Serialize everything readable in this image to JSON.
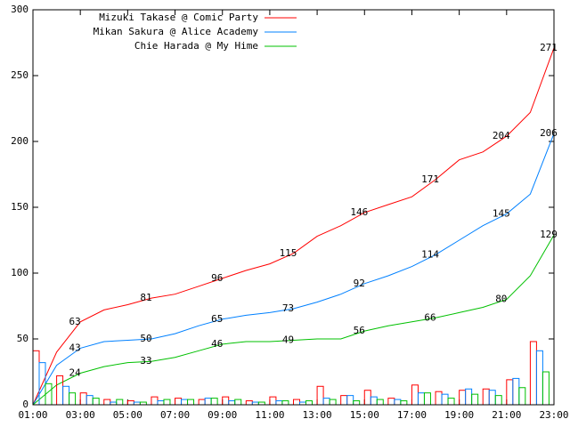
{
  "chart_data": [
    {
      "type": "line",
      "x": [
        1,
        2,
        3,
        4,
        5,
        6,
        7,
        8,
        9,
        10,
        11,
        12,
        13,
        14,
        15,
        16,
        17,
        18,
        19,
        20,
        21,
        22,
        23
      ],
      "xlim": [
        1,
        23
      ],
      "ylim": [
        0,
        300
      ],
      "xticks": [
        {
          "value": 1,
          "label": "01:00"
        },
        {
          "value": 3,
          "label": "03:00"
        },
        {
          "value": 5,
          "label": "05:00"
        },
        {
          "value": 7,
          "label": "07:00"
        },
        {
          "value": 9,
          "label": "09:00"
        },
        {
          "value": 11,
          "label": "11:00"
        },
        {
          "value": 13,
          "label": "13:00"
        },
        {
          "value": 15,
          "label": "15:00"
        },
        {
          "value": 17,
          "label": "17:00"
        },
        {
          "value": 19,
          "label": "19:00"
        },
        {
          "value": 21,
          "label": "21:00"
        },
        {
          "value": 23,
          "label": "23:00"
        }
      ],
      "yticks": [
        0,
        50,
        100,
        150,
        200,
        250,
        300
      ],
      "legend": "top-left",
      "series": [
        {
          "name": "Mizuki Takase @ Comic Party",
          "color": "#ff0000",
          "values": [
            0,
            40,
            63,
            72,
            76,
            81,
            84,
            90,
            96,
            102,
            107,
            115,
            128,
            136,
            146,
            152,
            158,
            171,
            186,
            192,
            204,
            222,
            271
          ]
        },
        {
          "name": "Mikan Sakura @ Alice Academy",
          "color": "#0080ff",
          "values": [
            0,
            30,
            43,
            48,
            49,
            50,
            54,
            60,
            65,
            68,
            70,
            73,
            78,
            84,
            92,
            98,
            105,
            114,
            125,
            136,
            145,
            160,
            206
          ]
        },
        {
          "name": "Chie Harada @ My Hime",
          "color": "#00c000",
          "values": [
            0,
            15,
            24,
            29,
            32,
            33,
            36,
            41,
            46,
            48,
            48,
            49,
            50,
            50,
            56,
            60,
            63,
            66,
            70,
            74,
            80,
            98,
            129
          ]
        }
      ]
    },
    {
      "type": "bar",
      "x": [
        1,
        2,
        3,
        4,
        5,
        6,
        7,
        8,
        9,
        10,
        11,
        12,
        13,
        14,
        15,
        16,
        17,
        18,
        19,
        20,
        21,
        22
      ],
      "xlim": [
        1,
        23
      ],
      "ylim": [
        0,
        300
      ],
      "series": [
        {
          "color": "#ff0000",
          "values": [
            41,
            22,
            9,
            4,
            3,
            6,
            5,
            4,
            6,
            3,
            6,
            4,
            14,
            7,
            11,
            5,
            15,
            10,
            11,
            12,
            19,
            48
          ]
        },
        {
          "color": "#0080ff",
          "values": [
            32,
            14,
            7,
            2,
            2,
            3,
            4,
            5,
            3,
            2,
            3,
            2,
            5,
            7,
            6,
            4,
            9,
            8,
            12,
            11,
            20,
            41
          ]
        },
        {
          "color": "#00c000",
          "values": [
            16,
            9,
            5,
            4,
            2,
            4,
            4,
            5,
            4,
            2,
            3,
            3,
            4,
            3,
            4,
            3,
            9,
            5,
            8,
            7,
            13,
            25
          ]
        }
      ]
    }
  ]
}
